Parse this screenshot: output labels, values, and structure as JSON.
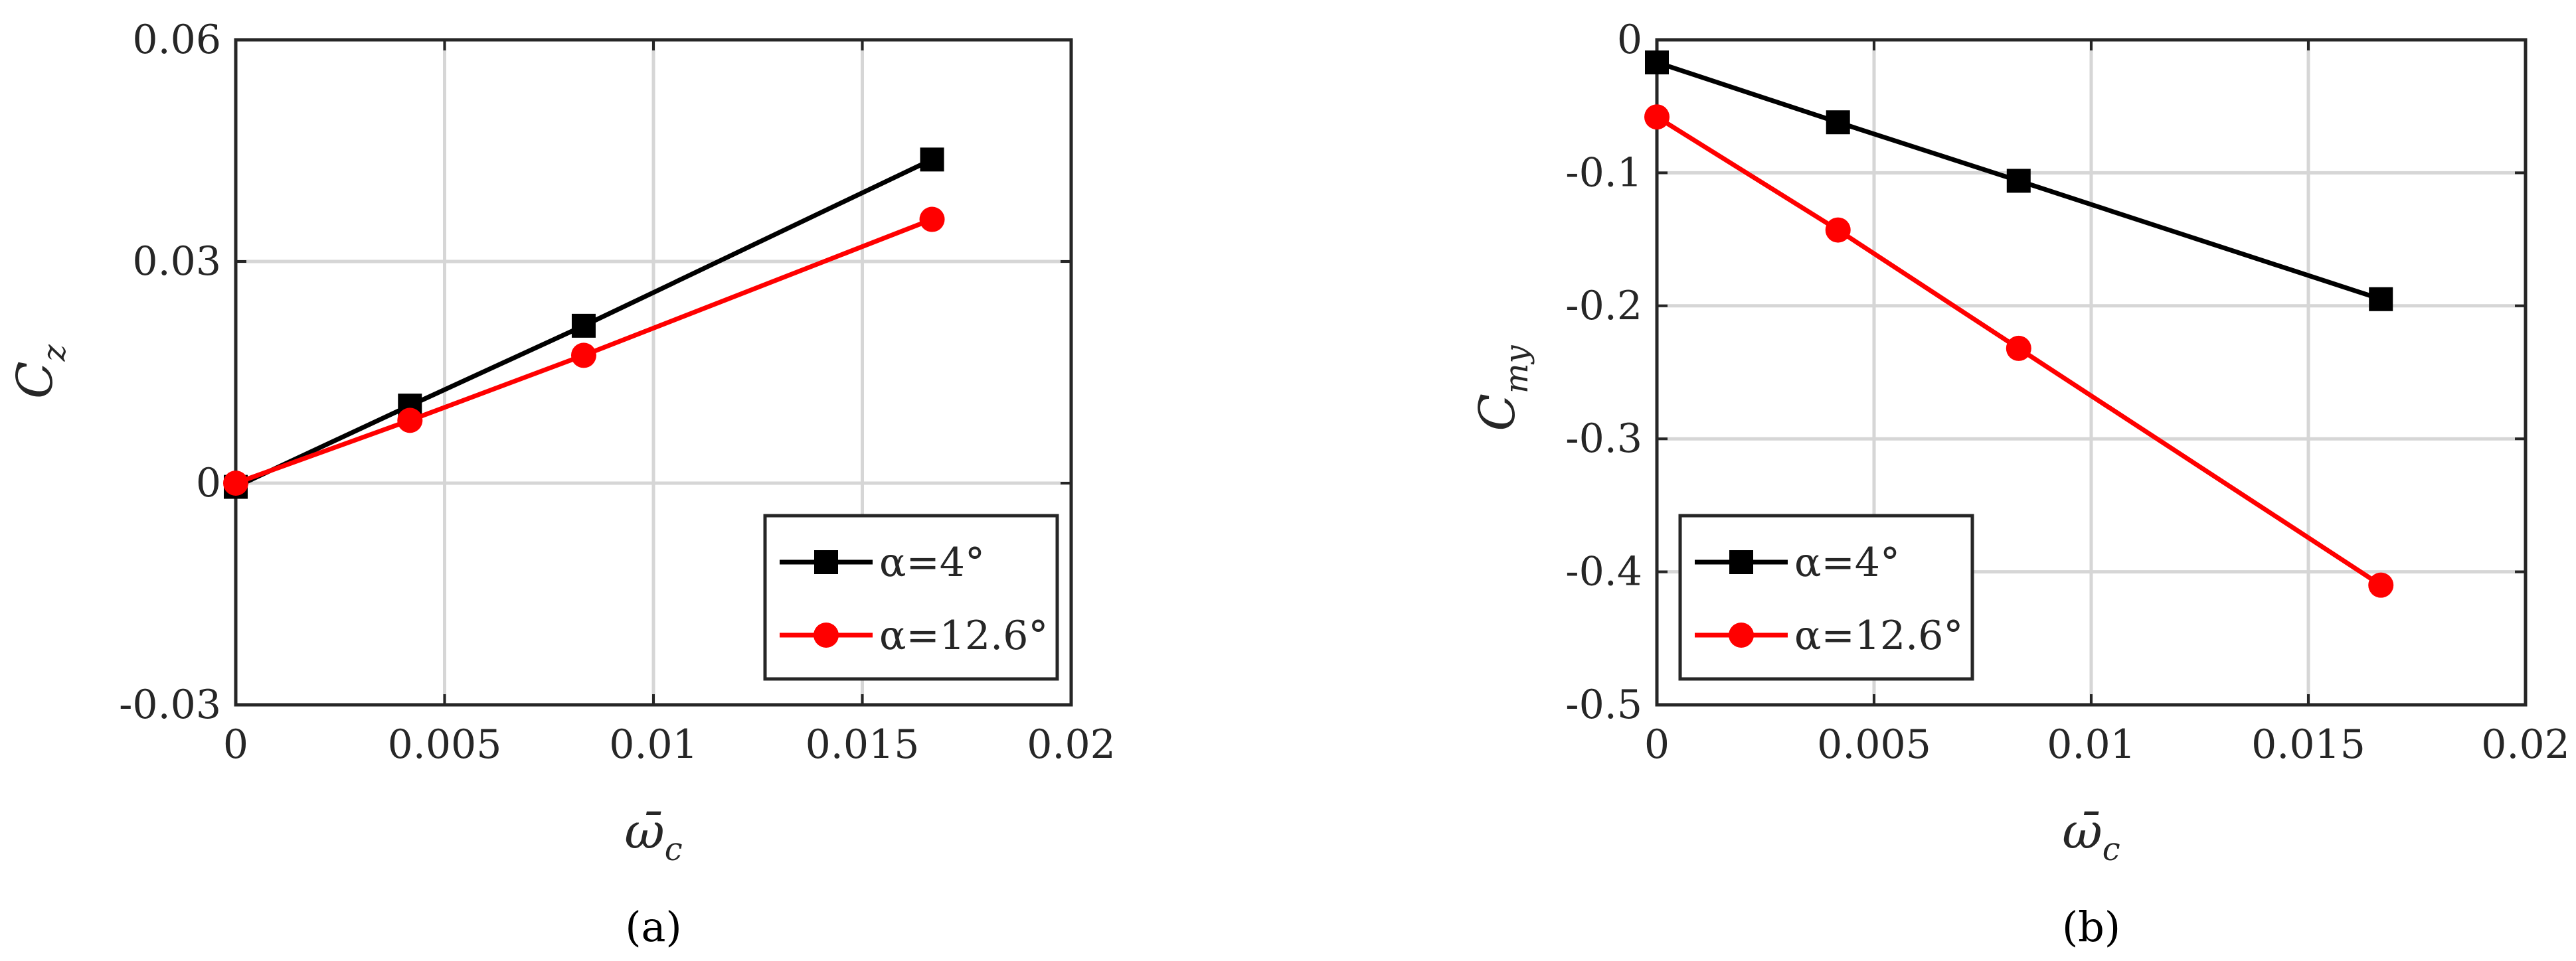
{
  "figure": {
    "captions": [
      "(a)",
      "(b)"
    ]
  },
  "chart_data": [
    {
      "type": "line",
      "panel": "a",
      "caption": "(a)",
      "ylabel": "C",
      "ylabel_sub": "z",
      "xlabel": "ω̄",
      "xlabel_sub": "c",
      "xlim": [
        0,
        0.02
      ],
      "ylim": [
        -0.03,
        0.06
      ],
      "xticks": [
        0,
        0.005,
        0.01,
        0.015,
        0.02
      ],
      "xtick_labels": [
        "0",
        "0.005",
        "0.01",
        "0.015",
        "0.02"
      ],
      "yticks": [
        -0.03,
        0,
        0.03,
        0.06
      ],
      "ytick_labels": [
        "-0.03",
        "0",
        "0.03",
        "0.06"
      ],
      "grid": true,
      "legend_position": "bottom-right",
      "series": [
        {
          "name": "α=4°",
          "color": "#000000",
          "marker": "square",
          "x": [
            0,
            0.00417,
            0.00833,
            0.01667
          ],
          "y": [
            -0.0005,
            0.0105,
            0.0213,
            0.0438
          ]
        },
        {
          "name": "α=12.6°",
          "color": "#ff0000",
          "marker": "circle",
          "x": [
            0,
            0.00417,
            0.00833,
            0.01667
          ],
          "y": [
            0.0,
            0.0085,
            0.0173,
            0.0357
          ]
        }
      ]
    },
    {
      "type": "line",
      "panel": "b",
      "caption": "(b)",
      "ylabel": "C",
      "ylabel_sub": "my",
      "xlabel": "ω̄",
      "xlabel_sub": "c",
      "xlim": [
        0,
        0.02
      ],
      "ylim": [
        -0.5,
        0
      ],
      "xticks": [
        0,
        0.005,
        0.01,
        0.015,
        0.02
      ],
      "xtick_labels": [
        "0",
        "0.005",
        "0.01",
        "0.015",
        "0.02"
      ],
      "yticks": [
        -0.5,
        -0.4,
        -0.3,
        -0.2,
        -0.1,
        0
      ],
      "ytick_labels": [
        "-0.5",
        "-0.4",
        "-0.3",
        "-0.2",
        "-0.1",
        "0"
      ],
      "grid": true,
      "legend_position": "bottom-left",
      "series": [
        {
          "name": "α=4°",
          "color": "#000000",
          "marker": "square",
          "x": [
            0,
            0.00417,
            0.00833,
            0.01667
          ],
          "y": [
            -0.017,
            -0.062,
            -0.106,
            -0.195
          ]
        },
        {
          "name": "α=12.6°",
          "color": "#ff0000",
          "marker": "circle",
          "x": [
            0,
            0.00417,
            0.00833,
            0.01667
          ],
          "y": [
            -0.058,
            -0.143,
            -0.232,
            -0.41
          ]
        }
      ]
    }
  ]
}
